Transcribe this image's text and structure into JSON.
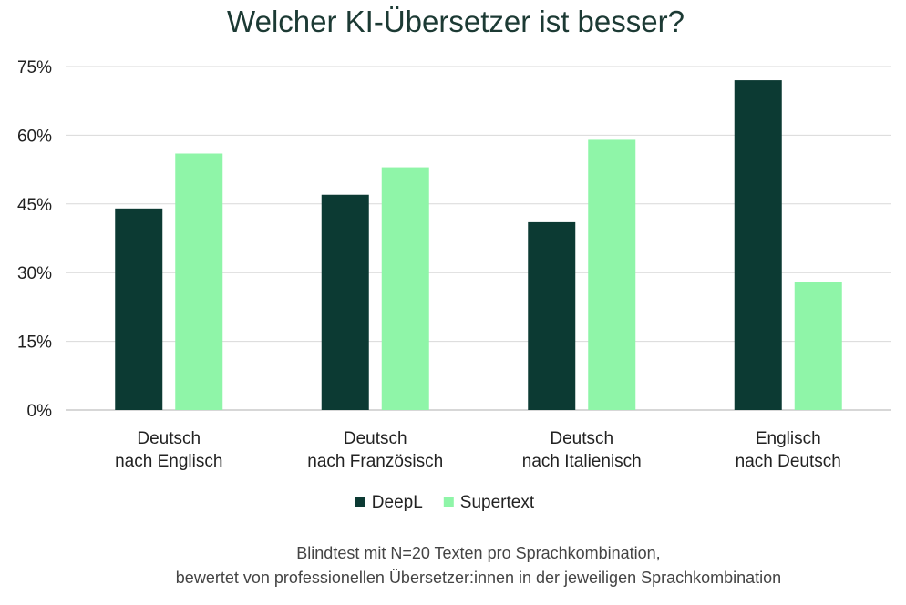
{
  "chart_data": {
    "type": "bar",
    "title": "Welcher KI-Übersetzer ist besser?",
    "categories": [
      [
        "Deutsch",
        "nach Englisch"
      ],
      [
        "Deutsch",
        "nach Französisch"
      ],
      [
        "Deutsch",
        "nach Italienisch"
      ],
      [
        "Englisch",
        "nach Deutsch"
      ]
    ],
    "series": [
      {
        "name": "DeepL",
        "color": "#0c3a33",
        "values": [
          44,
          47,
          41,
          72
        ]
      },
      {
        "name": "Supertext",
        "color": "#8ff5a8",
        "values": [
          56,
          53,
          59,
          28
        ]
      }
    ],
    "y_ticks": [
      "0%",
      "15%",
      "30%",
      "45%",
      "60%",
      "75%"
    ],
    "ylim": [
      0,
      75
    ],
    "grid": true,
    "legend_position": "bottom",
    "footnote": [
      "Blindtest mit N=20 Texten pro Sprachkombination,",
      "bewertet von professionellen Übersetzer:innen in der jeweiligen Sprachkombination"
    ]
  }
}
